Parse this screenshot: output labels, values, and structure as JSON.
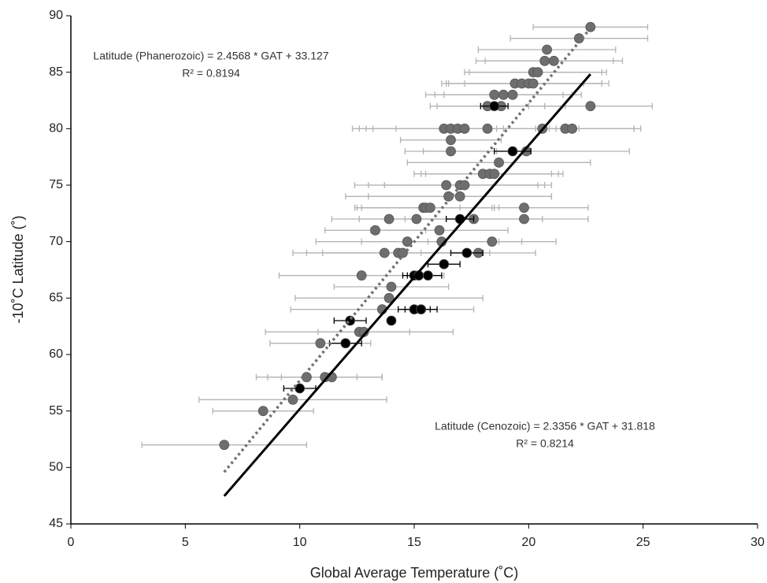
{
  "chart_data": {
    "type": "scatter",
    "xlabel": "Global Average Temperature (˚C)",
    "ylabel": "-10˚C  Latitude (˚)",
    "xlim": [
      0,
      30
    ],
    "xticks": [
      0,
      5,
      10,
      15,
      20,
      25,
      30
    ],
    "ylim": [
      45,
      90
    ],
    "yticks": [
      45,
      50,
      55,
      60,
      65,
      70,
      75,
      80,
      85,
      90
    ],
    "grid": false,
    "annotations": [
      "Latitude (Phanerozoic) = 2.4568 * GAT + 33.127",
      "R² = 0.8194",
      "Latitude (Cenozoic) = 2.3356 * GAT + 31.818",
      "R² = 0.8214"
    ],
    "series": [
      {
        "type": "scatter",
        "color": "#6e6e6e",
        "error_color": "#b4b4b4",
        "x": [
          6.7,
          8.4,
          9.7,
          10.3,
          11.1,
          11.4,
          10.9,
          12.6,
          12.8,
          12.7,
          13.6,
          13.9,
          14.0,
          13.7,
          14.3,
          14.5,
          14.7,
          13.3,
          13.9,
          15.1,
          15.4,
          15.5,
          15.7,
          16.1,
          16.2,
          16.5,
          16.4,
          17.0,
          17.0,
          17.2,
          17.6,
          17.8,
          18.4,
          18.0,
          18.3,
          18.5,
          18.7,
          16.6,
          19.9,
          16.6,
          16.3,
          16.6,
          16.9,
          17.2,
          18.2,
          20.6,
          21.6,
          21.9,
          18.2,
          18.8,
          22.7,
          18.5,
          18.9,
          19.3,
          19.4,
          19.7,
          20.0,
          20.2,
          20.2,
          20.4,
          20.7,
          21.1,
          20.8,
          22.2,
          22.7,
          19.8,
          19.8
        ],
        "values": [
          52,
          55,
          56,
          58,
          58,
          58,
          61,
          62,
          62,
          67,
          64,
          65,
          66,
          69,
          69,
          69,
          70,
          71,
          72,
          72,
          73,
          73,
          73,
          71,
          70,
          74,
          75,
          75,
          74,
          75,
          72,
          69,
          70,
          76,
          76,
          76,
          77,
          78,
          78,
          79,
          80,
          80,
          80,
          80,
          80,
          80,
          80,
          80,
          82,
          82,
          82,
          83,
          83,
          83,
          84,
          84,
          84,
          84,
          85,
          85,
          86,
          86,
          87,
          88,
          89,
          73,
          72
        ],
        "xerr": [
          3.6,
          2.2,
          4.1,
          2.2,
          2.5,
          2.2,
          2.2,
          4.1,
          2.0,
          3.6,
          4.0,
          4.1,
          2.5,
          4.0,
          4.0,
          3.5,
          4.0,
          2.2,
          2.5,
          2.5,
          3.0,
          3.0,
          3.0,
          3.0,
          3.5,
          4.5,
          4.0,
          4.0,
          4.0,
          3.5,
          3.0,
          2.5,
          2.8,
          3.0,
          3.0,
          3.0,
          4.0,
          2.0,
          4.5,
          2.2,
          4.0,
          4.0,
          4.0,
          4.0,
          4.0,
          4.0,
          3.0,
          3.0,
          2.5,
          2.8,
          2.7,
          3.0,
          3.0,
          3.0,
          3.0,
          3.5,
          3.5,
          3.0,
          3.0,
          3.0,
          3.0,
          3.0,
          3.0,
          3.0,
          2.5,
          2.8,
          2.8
        ]
      },
      {
        "type": "scatter",
        "color": "#000000",
        "error_color": "#000000",
        "x": [
          10.0,
          12.0,
          12.2,
          14.0,
          15.0,
          15.3,
          15.0,
          15.2,
          15.6,
          16.3,
          17.3,
          17.0,
          19.3,
          18.5
        ],
        "values": [
          57,
          61,
          63,
          63,
          64,
          64,
          67,
          67,
          67,
          68,
          69,
          72,
          78,
          82
        ],
        "xerr": [
          0.7,
          0.7,
          0.7,
          0,
          0.7,
          0.7,
          0.5,
          0.5,
          0.6,
          0.7,
          0.7,
          0.6,
          0.8,
          0.6
        ]
      },
      {
        "type": "line",
        "color": "#707070",
        "dashed": true,
        "x": [
          6.7,
          22.7
        ],
        "values": [
          49.59,
          88.9
        ]
      },
      {
        "type": "line",
        "color": "#000000",
        "dashed": false,
        "x": [
          6.7,
          22.7
        ],
        "values": [
          47.47,
          84.83
        ]
      }
    ]
  }
}
